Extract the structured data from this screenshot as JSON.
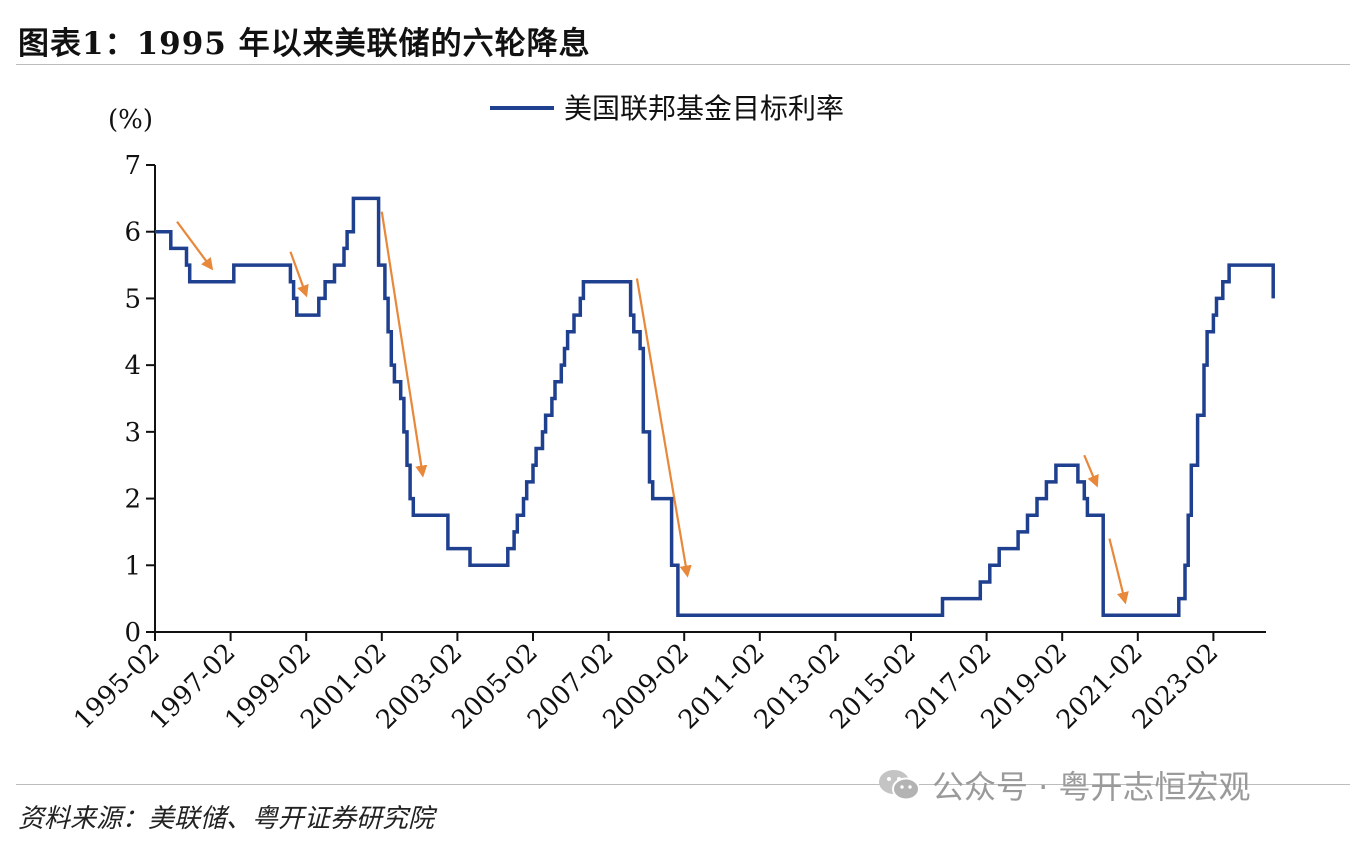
{
  "header": {
    "title": "图表1：1995 年以来美联储的六轮降息"
  },
  "footer": {
    "source": "资料来源：美联储、粤开证券研究院",
    "watermark": "公众号 · 粤开志恒宏观",
    "watermark_icon": "wechat-icon"
  },
  "chart_data": {
    "type": "line",
    "title": "图表1：1995 年以来美联储的六轮降息",
    "ylabel": "(%)",
    "xlabel": "",
    "ylim": [
      0,
      7
    ],
    "yticks": [
      0,
      1,
      2,
      3,
      4,
      5,
      6,
      7
    ],
    "xlim": [
      "1995-02",
      "2024-09"
    ],
    "xticks": [
      "1995-02",
      "1997-02",
      "1999-02",
      "2001-02",
      "2003-02",
      "2005-02",
      "2007-02",
      "2009-02",
      "2011-02",
      "2013-02",
      "2015-02",
      "2017-02",
      "2019-02",
      "2021-02",
      "2023-02"
    ],
    "legend_position": "top-center",
    "grid": false,
    "step": true,
    "series": [
      {
        "name": "美国联邦基金目标利率",
        "color": "#1f3f8f",
        "points": [
          [
            "1995-02",
            6.0
          ],
          [
            "1995-07",
            5.75
          ],
          [
            "1995-12",
            5.5
          ],
          [
            "1996-01",
            5.25
          ],
          [
            "1997-03",
            5.5
          ],
          [
            "1998-09",
            5.25
          ],
          [
            "1998-10",
            5.0
          ],
          [
            "1998-11",
            4.75
          ],
          [
            "1999-06",
            5.0
          ],
          [
            "1999-08",
            5.25
          ],
          [
            "1999-11",
            5.5
          ],
          [
            "2000-02",
            5.75
          ],
          [
            "2000-03",
            6.0
          ],
          [
            "2000-05",
            6.5
          ],
          [
            "2001-01",
            6.0
          ],
          [
            "2001-01",
            5.5
          ],
          [
            "2001-03",
            5.0
          ],
          [
            "2001-04",
            4.5
          ],
          [
            "2001-05",
            4.0
          ],
          [
            "2001-06",
            3.75
          ],
          [
            "2001-08",
            3.5
          ],
          [
            "2001-09",
            3.0
          ],
          [
            "2001-10",
            2.5
          ],
          [
            "2001-11",
            2.0
          ],
          [
            "2001-12",
            1.75
          ],
          [
            "2002-11",
            1.25
          ],
          [
            "2003-06",
            1.0
          ],
          [
            "2004-06",
            1.25
          ],
          [
            "2004-08",
            1.5
          ],
          [
            "2004-09",
            1.75
          ],
          [
            "2004-11",
            2.0
          ],
          [
            "2004-12",
            2.25
          ],
          [
            "2005-02",
            2.5
          ],
          [
            "2005-03",
            2.75
          ],
          [
            "2005-05",
            3.0
          ],
          [
            "2005-06",
            3.25
          ],
          [
            "2005-08",
            3.5
          ],
          [
            "2005-09",
            3.75
          ],
          [
            "2005-11",
            4.0
          ],
          [
            "2005-12",
            4.25
          ],
          [
            "2006-01",
            4.5
          ],
          [
            "2006-03",
            4.75
          ],
          [
            "2006-05",
            5.0
          ],
          [
            "2006-06",
            5.25
          ],
          [
            "2007-09",
            4.75
          ],
          [
            "2007-10",
            4.5
          ],
          [
            "2007-12",
            4.25
          ],
          [
            "2008-01",
            3.5
          ],
          [
            "2008-01",
            3.0
          ],
          [
            "2008-03",
            2.25
          ],
          [
            "2008-04",
            2.0
          ],
          [
            "2008-10",
            1.5
          ],
          [
            "2008-10",
            1.0
          ],
          [
            "2008-12",
            0.25
          ],
          [
            "2015-12",
            0.5
          ],
          [
            "2016-12",
            0.75
          ],
          [
            "2017-03",
            1.0
          ],
          [
            "2017-06",
            1.25
          ],
          [
            "2017-12",
            1.5
          ],
          [
            "2018-03",
            1.75
          ],
          [
            "2018-06",
            2.0
          ],
          [
            "2018-09",
            2.25
          ],
          [
            "2018-12",
            2.5
          ],
          [
            "2019-07",
            2.25
          ],
          [
            "2019-09",
            2.0
          ],
          [
            "2019-10",
            1.75
          ],
          [
            "2020-03",
            1.0
          ],
          [
            "2020-03",
            0.25
          ],
          [
            "2022-03",
            0.5
          ],
          [
            "2022-05",
            1.0
          ],
          [
            "2022-06",
            1.75
          ],
          [
            "2022-07",
            2.5
          ],
          [
            "2022-09",
            3.25
          ],
          [
            "2022-11",
            4.0
          ],
          [
            "2022-12",
            4.5
          ],
          [
            "2023-02",
            4.75
          ],
          [
            "2023-03",
            5.0
          ],
          [
            "2023-05",
            5.25
          ],
          [
            "2023-07",
            5.5
          ],
          [
            "2024-09",
            5.0
          ]
        ]
      }
    ],
    "annotations": [
      {
        "type": "arrow",
        "color": "#e8883a",
        "from": [
          "1995-09",
          6.15
        ],
        "to": [
          "1996-08",
          5.45
        ]
      },
      {
        "type": "arrow",
        "color": "#e8883a",
        "from": [
          "1998-09",
          5.7
        ],
        "to": [
          "1999-02",
          5.05
        ]
      },
      {
        "type": "arrow",
        "color": "#e8883a",
        "from": [
          "2001-02",
          6.3
        ],
        "to": [
          "2002-03",
          2.35
        ]
      },
      {
        "type": "arrow",
        "color": "#e8883a",
        "from": [
          "2007-11",
          5.3
        ],
        "to": [
          "2009-03",
          0.85
        ]
      },
      {
        "type": "arrow",
        "color": "#e8883a",
        "from": [
          "2019-09",
          2.65
        ],
        "to": [
          "2020-01",
          2.2
        ]
      },
      {
        "type": "arrow",
        "color": "#e8883a",
        "from": [
          "2020-05",
          1.4
        ],
        "to": [
          "2020-10",
          0.45
        ]
      }
    ]
  }
}
